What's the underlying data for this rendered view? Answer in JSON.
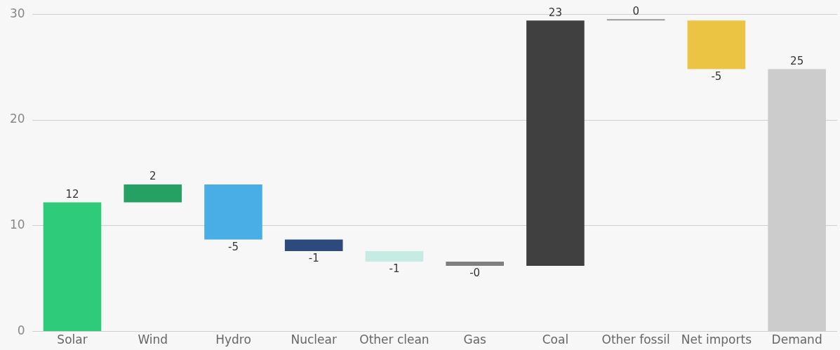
{
  "chart_data": {
    "type": "bar",
    "categories": [
      "Solar",
      "Wind",
      "Hydro",
      "Nuclear",
      "Other clean",
      "Gas",
      "Coal",
      "Other fossil",
      "Net imports",
      "Demand"
    ],
    "values": [
      12.2,
      1.7,
      -5.2,
      -1.1,
      -1.0,
      -0.4,
      23.2,
      0,
      -4.6,
      24.8
    ],
    "base": [
      0,
      12.2,
      13.9,
      8.7,
      7.6,
      6.6,
      6.2,
      29.4,
      29.4,
      0
    ],
    "colors": [
      "#2ecc7a",
      "#24a163",
      "#4aaee6",
      "#2e4a7d",
      "#c5ebe2",
      "#7f7f7f",
      "#404040",
      "#9a9a9a",
      "#ebc443",
      "#cccccc"
    ],
    "value_labels": [
      "12",
      "2",
      "-5",
      "-1",
      "-1",
      "-0",
      "23",
      "0",
      "-5",
      "25"
    ],
    "ylim": [
      0,
      30
    ],
    "yticks": [
      0,
      10,
      20,
      30
    ],
    "grid": "y",
    "legend": false
  }
}
